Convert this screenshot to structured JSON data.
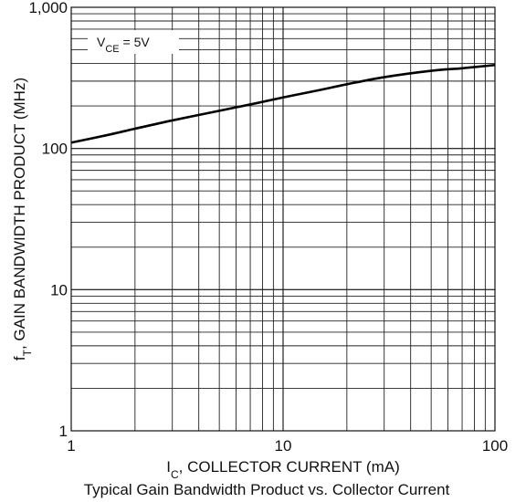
{
  "chart_data": {
    "type": "line",
    "title": "Typical Gain Bandwidth Product vs. Collector Current",
    "xlabel": {
      "main": "I",
      "sub": "C",
      "rest": ", COLLECTOR CURRENT (mA)"
    },
    "ylabel": {
      "main": "f",
      "sub": "T",
      "rest": ", GAIN BANDWIDTH PRODUCT (MHz)"
    },
    "xscale": "log",
    "yscale": "log",
    "xlim": [
      1,
      100
    ],
    "ylim": [
      1,
      1000
    ],
    "x_ticks": [
      {
        "value": 1,
        "label": "1"
      },
      {
        "value": 10,
        "label": "10"
      },
      {
        "value": 100,
        "label": "100"
      }
    ],
    "y_ticks": [
      {
        "value": 1,
        "label": "1"
      },
      {
        "value": 10,
        "label": "10"
      },
      {
        "value": 100,
        "label": "100"
      },
      {
        "value": 1000,
        "label": "1,000"
      }
    ],
    "grid": true,
    "annotation": {
      "main": "V",
      "sub": "CE",
      "rest": " = 5V"
    },
    "series": [
      {
        "x": [
          1,
          1.5,
          2,
          3,
          5,
          7,
          10,
          15,
          20,
          30,
          50,
          70,
          100
        ],
        "y": [
          110,
          125,
          138,
          158,
          185,
          205,
          230,
          260,
          285,
          320,
          355,
          370,
          390
        ]
      }
    ]
  }
}
